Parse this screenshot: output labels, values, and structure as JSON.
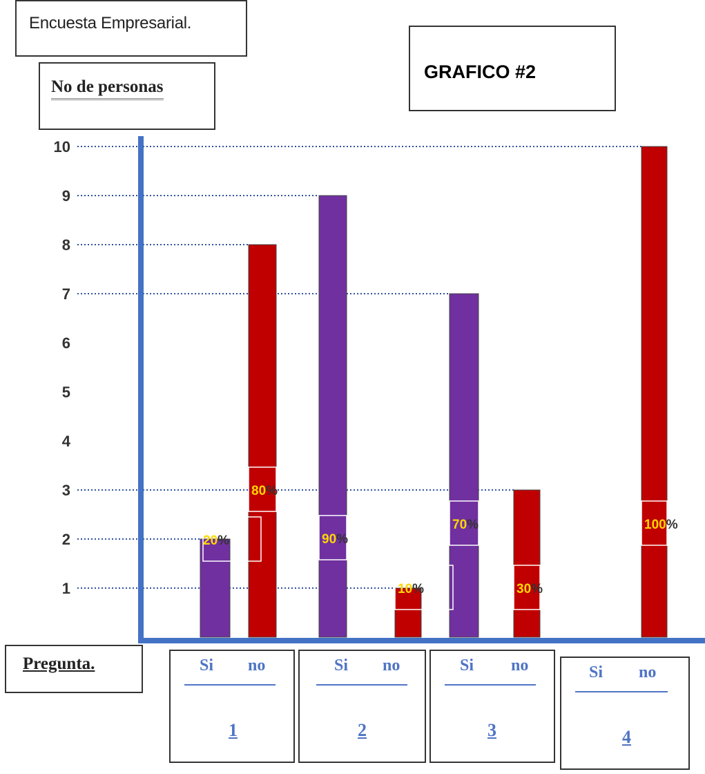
{
  "survey_title": "Encuesta Empresarial.",
  "graph_title": "GRAFICO #2",
  "chart_data": {
    "type": "bar",
    "title": "GRAFICO #2",
    "ylabel": "No de personas",
    "xlabel": "Pregunta.",
    "ylim": [
      0,
      10
    ],
    "yticks": [
      "1",
      "2",
      "3",
      "4",
      "5",
      "6",
      "7",
      "8",
      "9",
      "10"
    ],
    "categories": [
      "1",
      "2",
      "3",
      "4"
    ],
    "category_labels": [
      {
        "si": "Si",
        "no": "no"
      },
      {
        "si": "Si",
        "no": "no"
      },
      {
        "si": "Si",
        "no": "no"
      },
      {
        "si": "Si",
        "no": "no"
      }
    ],
    "bars": [
      {
        "question": "1",
        "answer": "Si",
        "value": 2,
        "pct": "20",
        "color": "#7030a0"
      },
      {
        "question": "1",
        "answer": "no",
        "value": 8,
        "pct": "80",
        "color": "#c00000"
      },
      {
        "question": "2",
        "answer": "Si",
        "value": 9,
        "pct": "90",
        "color": "#7030a0"
      },
      {
        "question": "2",
        "answer": "no",
        "value": 1,
        "pct": "10",
        "color": "#c00000"
      },
      {
        "question": "3",
        "answer": "Si",
        "value": 7,
        "pct": "70",
        "color": "#7030a0"
      },
      {
        "question": "3",
        "answer": "no",
        "value": 3,
        "pct": "30",
        "color": "#c00000"
      },
      {
        "question": "4",
        "answer": "no",
        "value": 10,
        "pct": "100",
        "color": "#c00000"
      }
    ],
    "pct_symbol": "%",
    "colors": {
      "si": "#7030a0",
      "no": "#c00000",
      "axis": "#4472c4",
      "pct_text": "#ffd700",
      "gridline": "#2f4fa0"
    }
  }
}
